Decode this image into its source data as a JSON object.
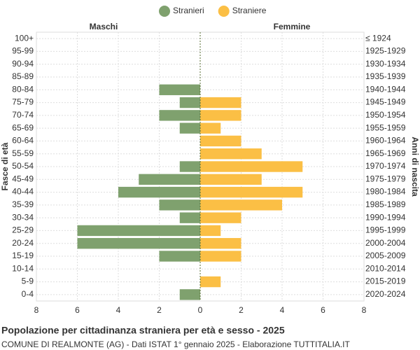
{
  "chart_data": {
    "type": "pyramid",
    "title": "Popolazione per cittadinanza straniera per età e sesso - 2025",
    "subtitle": "COMUNE DI REALMONTE (AG) - Dati ISTAT 1° gennaio 2025 - Elaborazione TUTTITALIA.IT",
    "left_label": "Maschi",
    "right_label": "Femmine",
    "y_title": "Fasce di età",
    "y2_title": "Anni di nascita",
    "categories": [
      "100+",
      "95-99",
      "90-94",
      "85-89",
      "80-84",
      "75-79",
      "70-74",
      "65-69",
      "60-64",
      "55-59",
      "50-54",
      "45-49",
      "40-44",
      "35-39",
      "30-34",
      "25-29",
      "20-24",
      "15-19",
      "10-14",
      "5-9",
      "0-4"
    ],
    "birth_years": [
      "≤ 1924",
      "1925-1929",
      "1930-1934",
      "1935-1939",
      "1940-1944",
      "1945-1949",
      "1950-1954",
      "1955-1959",
      "1960-1964",
      "1965-1969",
      "1970-1974",
      "1975-1979",
      "1980-1984",
      "1985-1989",
      "1990-1994",
      "1995-1999",
      "2000-2004",
      "2005-2009",
      "2010-2014",
      "2015-2019",
      "2020-2024"
    ],
    "series": [
      {
        "name": "Stranieri",
        "color": "#7fa16e",
        "side": "left",
        "values": [
          0,
          0,
          0,
          0,
          2,
          1,
          2,
          1,
          0,
          0,
          1,
          3,
          4,
          2,
          1,
          6,
          6,
          2,
          0,
          0,
          1
        ]
      },
      {
        "name": "Straniere",
        "color": "#fbbf45",
        "side": "right",
        "values": [
          0,
          0,
          0,
          0,
          0,
          2,
          2,
          1,
          2,
          3,
          5,
          3,
          5,
          4,
          2,
          1,
          2,
          2,
          0,
          1,
          0
        ]
      }
    ],
    "xlim": [
      -8,
      8
    ],
    "xticks": [
      {
        "value": -8,
        "label": "8"
      },
      {
        "value": -6,
        "label": "6"
      },
      {
        "value": -4,
        "label": "4"
      },
      {
        "value": -2,
        "label": "2"
      },
      0,
      2,
      4,
      6,
      8
    ],
    "grid": true
  }
}
